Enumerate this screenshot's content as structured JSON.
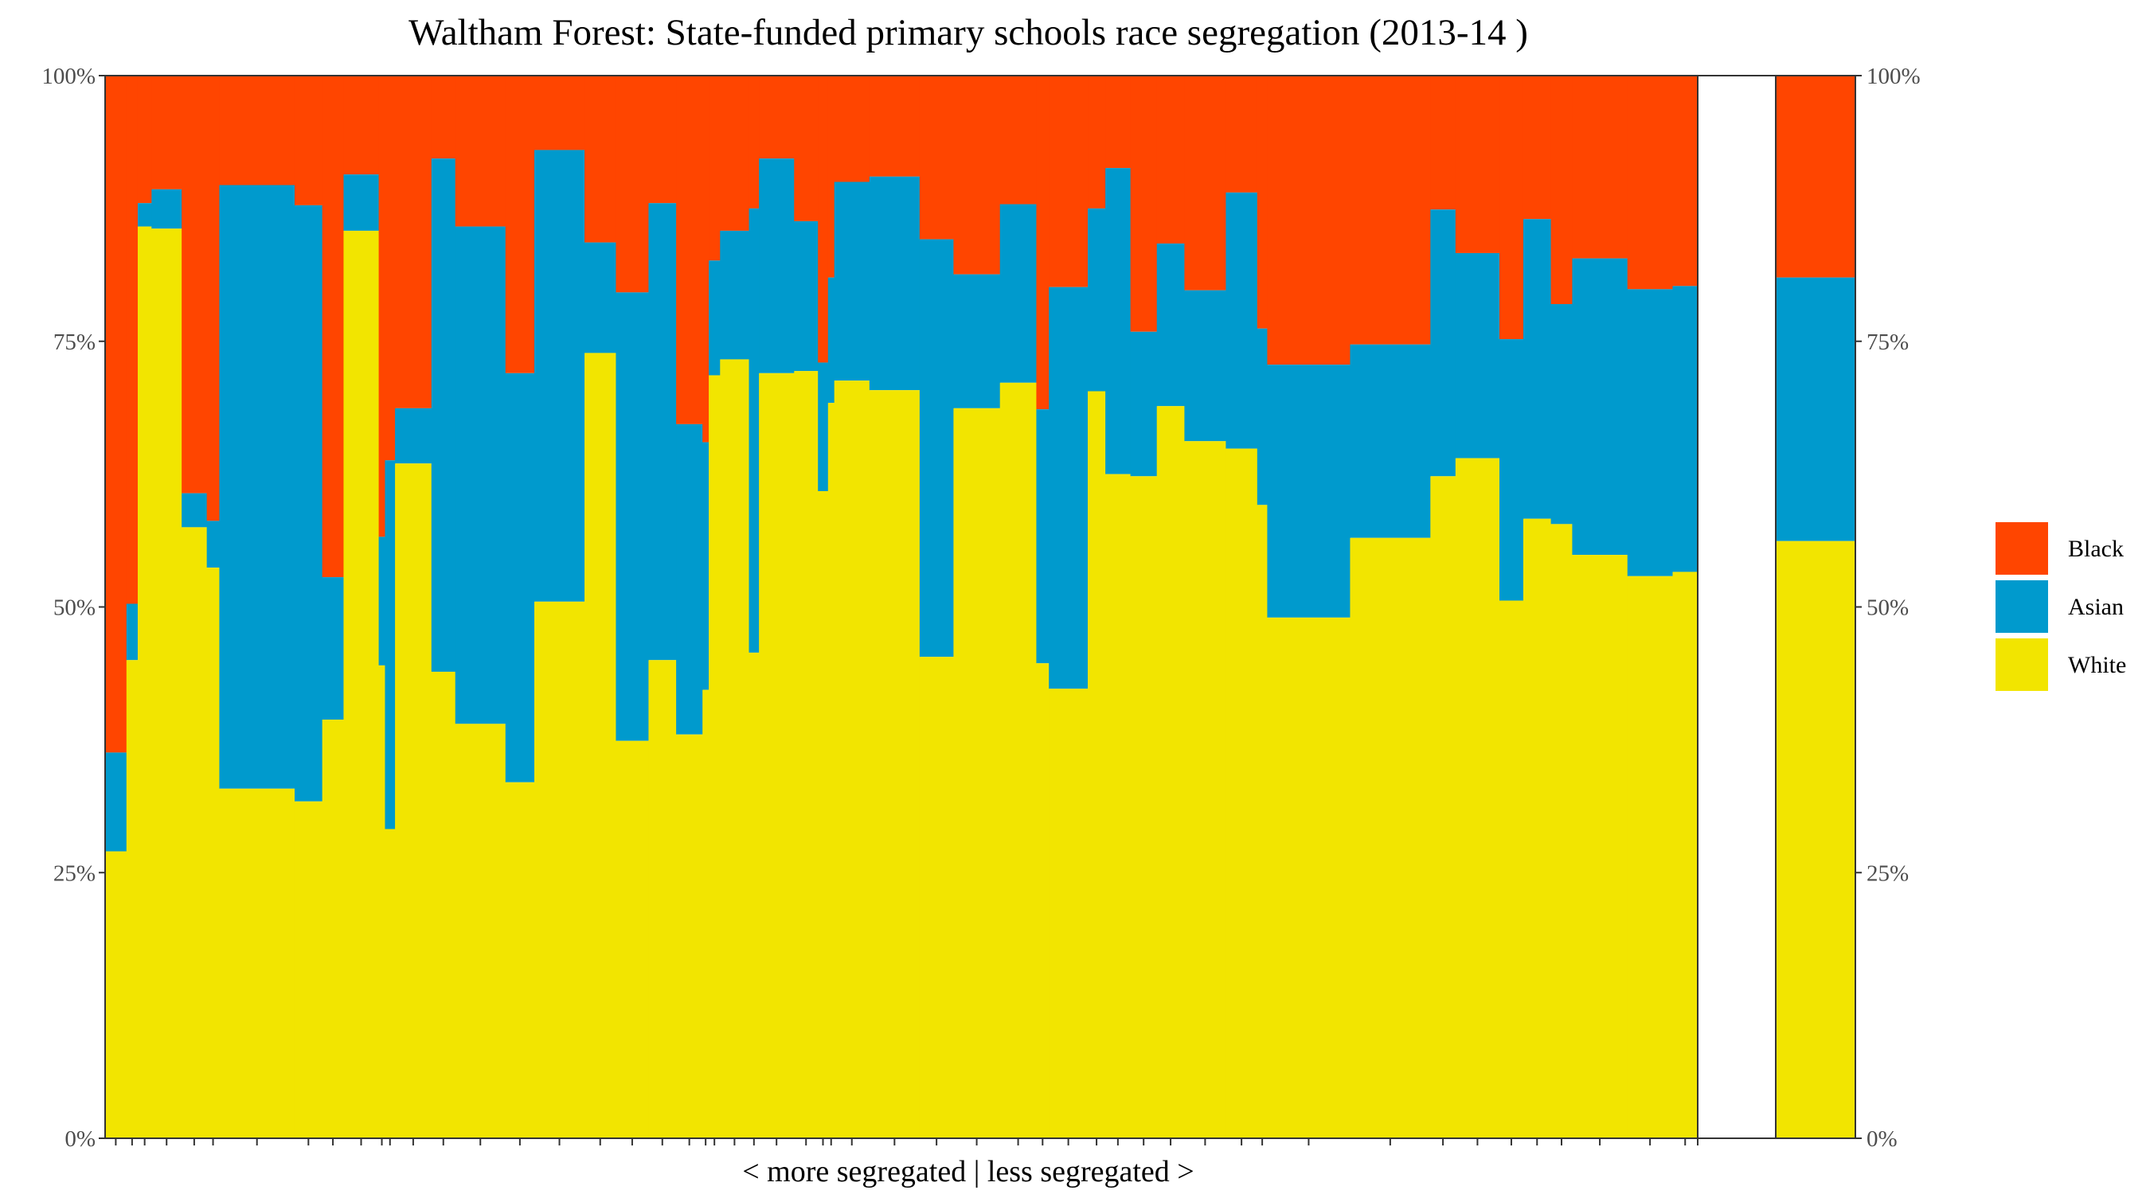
{
  "chart_data": {
    "type": "bar",
    "stacked": true,
    "title": "Waltham Forest: State-funded primary schools race segregation (2013-14 )",
    "xlabel": "< more segregated | less segregated >",
    "ylabel": "",
    "ylim": [
      0,
      100
    ],
    "y_ticks": [
      "0%",
      "25%",
      "50%",
      "75%",
      "100%"
    ],
    "y_tick_values": [
      0,
      25,
      50,
      75,
      100
    ],
    "stack_order_bottom_to_top": [
      "White",
      "Asian",
      "Black"
    ],
    "legend": [
      {
        "name": "Black",
        "color": "#FF4500"
      },
      {
        "name": "Asian",
        "color": "#009ACD"
      },
      {
        "name": "White",
        "color": "#F2E500"
      }
    ],
    "legend_position": "right",
    "note": "Each school is a bar whose width is proportional to its pupil numbers; the right panel shows the borough overall.",
    "schools": [
      {
        "width": 0.85,
        "white": 27.0,
        "asian": 36.3
      },
      {
        "width": 0.45,
        "white": 45.0,
        "asian": 50.3
      },
      {
        "width": 0.55,
        "white": 85.8,
        "asian": 88.0
      },
      {
        "width": 1.2,
        "white": 85.6,
        "asian": 89.3
      },
      {
        "width": 1.0,
        "white": 57.5,
        "asian": 60.7
      },
      {
        "width": 0.5,
        "white": 53.7,
        "asian": 58.1
      },
      {
        "width": 3.0,
        "white": 32.9,
        "asian": 89.7
      },
      {
        "width": 1.1,
        "white": 31.7,
        "asian": 87.8
      },
      {
        "width": 0.85,
        "white": 39.4,
        "asian": 52.8
      },
      {
        "width": 1.4,
        "white": 85.4,
        "asian": 90.7
      },
      {
        "width": 0.25,
        "white": 44.5,
        "asian": 56.6
      },
      {
        "width": 0.4,
        "white": 29.1,
        "asian": 63.8
      },
      {
        "width": 1.45,
        "white": 63.5,
        "asian": 68.7
      },
      {
        "width": 0.95,
        "white": 43.9,
        "asian": 92.2
      },
      {
        "width": 2.0,
        "white": 39.0,
        "asian": 85.8
      },
      {
        "width": 1.15,
        "white": 33.5,
        "asian": 72.0
      },
      {
        "width": 2.0,
        "white": 50.5,
        "asian": 93.0
      },
      {
        "width": 1.25,
        "white": 73.9,
        "asian": 84.3
      },
      {
        "width": 1.3,
        "white": 37.4,
        "asian": 79.6
      },
      {
        "width": 1.1,
        "white": 45.0,
        "asian": 88.0
      },
      {
        "width": 1.05,
        "white": 38.0,
        "asian": 67.2
      },
      {
        "width": 0.25,
        "white": 42.2,
        "asian": 65.5
      },
      {
        "width": 0.45,
        "white": 71.8,
        "asian": 82.6
      },
      {
        "width": 1.15,
        "white": 73.3,
        "asian": 85.4
      },
      {
        "width": 0.4,
        "white": 45.7,
        "asian": 87.5
      },
      {
        "width": 1.4,
        "white": 72.0,
        "asian": 92.2
      },
      {
        "width": 0.95,
        "white": 72.2,
        "asian": 86.3
      },
      {
        "width": 0.4,
        "white": 60.9,
        "asian": 73.0
      },
      {
        "width": 0.25,
        "white": 69.2,
        "asian": 81.0
      },
      {
        "width": 1.4,
        "white": 71.3,
        "asian": 90.0
      },
      {
        "width": 2.0,
        "white": 70.4,
        "asian": 90.5
      },
      {
        "width": 1.35,
        "white": 45.3,
        "asian": 84.6
      },
      {
        "width": 1.85,
        "white": 68.7,
        "asian": 81.3
      },
      {
        "width": 1.45,
        "white": 71.1,
        "asian": 87.9
      },
      {
        "width": 0.5,
        "white": 44.7,
        "asian": 68.6
      },
      {
        "width": 1.55,
        "white": 42.3,
        "asian": 80.1
      },
      {
        "width": 0.7,
        "white": 70.3,
        "asian": 87.5
      },
      {
        "width": 1.0,
        "white": 62.5,
        "asian": 91.3
      },
      {
        "width": 1.05,
        "white": 62.3,
        "asian": 75.9
      },
      {
        "width": 1.1,
        "white": 68.9,
        "asian": 84.2
      },
      {
        "width": 1.65,
        "white": 65.6,
        "asian": 79.8
      },
      {
        "width": 1.25,
        "white": 64.9,
        "asian": 89.0
      },
      {
        "width": 0.4,
        "white": 59.6,
        "asian": 76.2
      },
      {
        "width": 3.3,
        "white": 49.0,
        "asian": 72.8
      },
      {
        "width": 3.2,
        "white": 56.5,
        "asian": 74.7
      },
      {
        "width": 1.0,
        "white": 62.3,
        "asian": 87.4
      },
      {
        "width": 1.75,
        "white": 64.0,
        "asian": 83.3
      },
      {
        "width": 0.95,
        "white": 50.6,
        "asian": 75.2
      },
      {
        "width": 1.1,
        "white": 58.3,
        "asian": 86.5
      },
      {
        "width": 0.85,
        "white": 57.8,
        "asian": 78.5
      },
      {
        "width": 2.2,
        "white": 54.9,
        "asian": 82.8
      },
      {
        "width": 1.8,
        "white": 52.9,
        "asian": 79.9
      },
      {
        "width": 1.0,
        "white": 53.3,
        "asian": 80.2
      }
    ],
    "overall": {
      "white": 56.2,
      "asian": 81.0
    }
  }
}
